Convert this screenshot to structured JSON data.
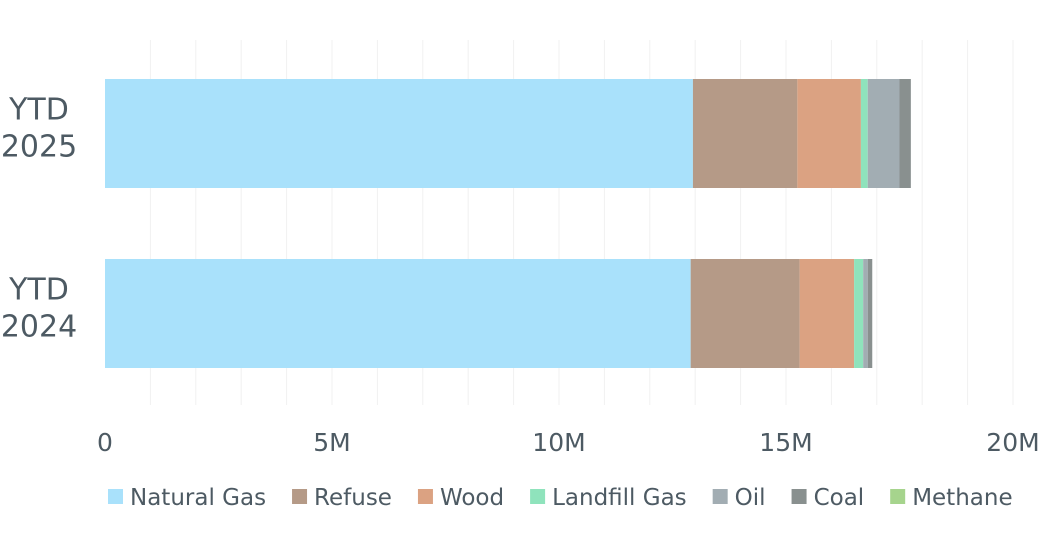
{
  "chart_data": {
    "type": "bar",
    "orientation": "horizontal",
    "stacked": true,
    "categories": [
      "YTD 2025",
      "YTD 2024"
    ],
    "series": [
      {
        "name": "Natural Gas",
        "color": "#a9e1fb",
        "values": [
          12950000,
          12900000
        ]
      },
      {
        "name": "Refuse",
        "color": "#b59a87",
        "values": [
          2300000,
          2400000
        ]
      },
      {
        "name": "Wood",
        "color": "#dba282",
        "values": [
          1400000,
          1200000
        ]
      },
      {
        "name": "Landfill Gas",
        "color": "#8fe3bc",
        "values": [
          150000,
          200000
        ]
      },
      {
        "name": "Oil",
        "color": "#a2adb3",
        "values": [
          700000,
          100000
        ]
      },
      {
        "name": "Coal",
        "color": "#89908f",
        "values": [
          250000,
          100000
        ]
      },
      {
        "name": "Methane",
        "color": "#a6d48d",
        "values": [
          0,
          0
        ]
      }
    ],
    "xlim": [
      0,
      20000000
    ],
    "xticks": [
      0,
      5000000,
      10000000,
      15000000,
      20000000
    ],
    "xtick_labels": [
      "0",
      "5M",
      "10M",
      "15M",
      "20M"
    ],
    "legend_position": "bottom",
    "grid": "vertical"
  }
}
